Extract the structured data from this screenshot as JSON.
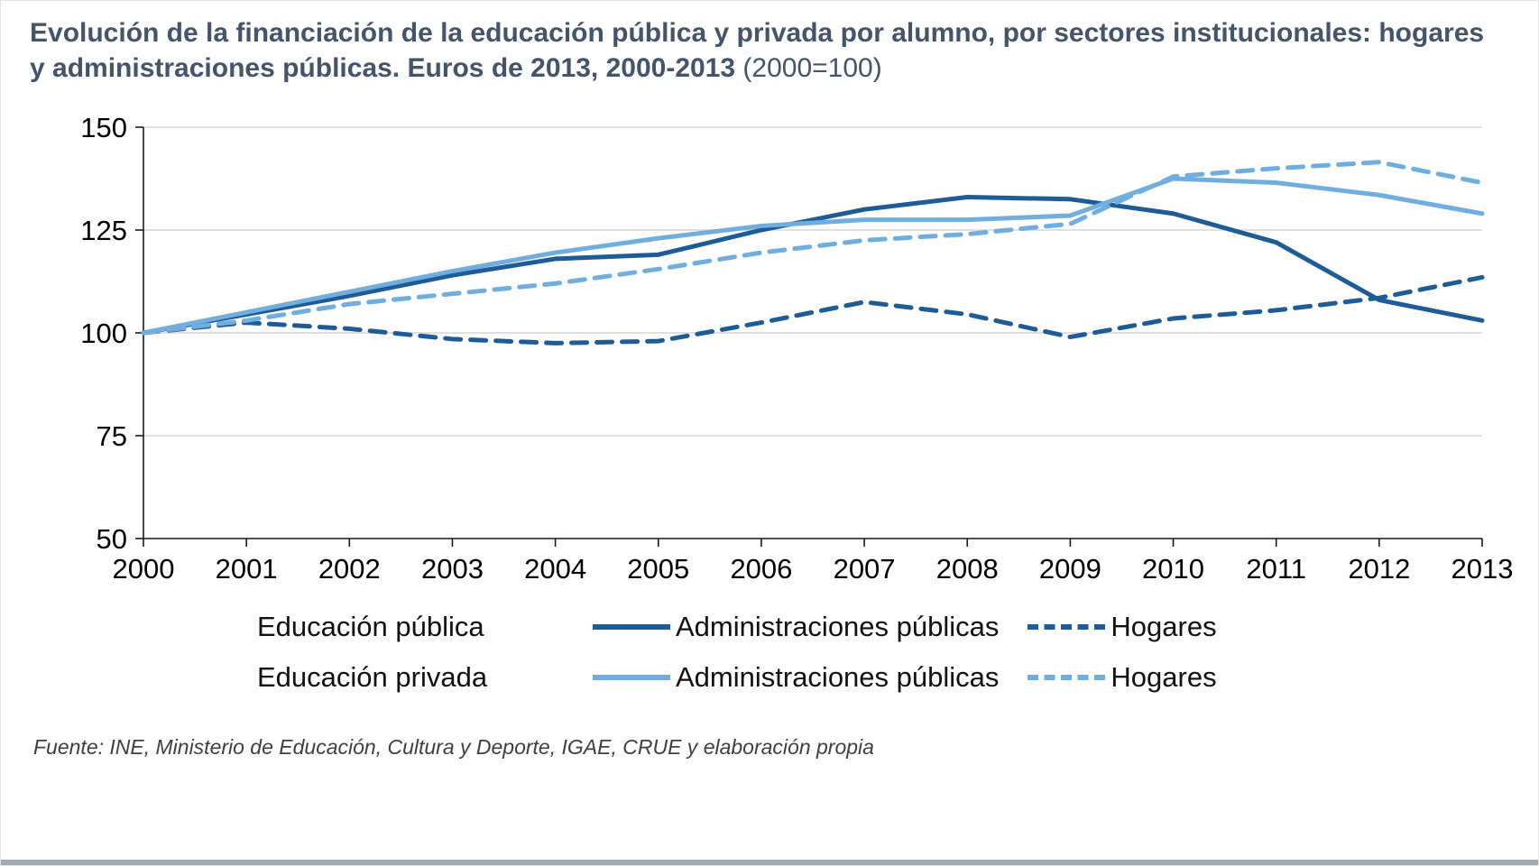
{
  "title": {
    "main": "Evolución de la financiación de la educación pública y privada por alumno, por sectores institucionales: hogares y administraciones públicas. Euros de 2013, 2000-2013",
    "suffix": "(2000=100)"
  },
  "source": "Fuente: INE, Ministerio de Educación, Cultura y Deporte, IGAE, CRUE  y elaboración propia",
  "colors": {
    "title_text": "#44546A",
    "dark_blue": "#1D5C96",
    "light_blue": "#6FAEDE",
    "grid": "#D6D6D6",
    "axis": "#1A1A1A",
    "tick_label": "#000000",
    "source_text": "#3F3F3F"
  },
  "legend": {
    "rows": [
      {
        "group": "Educación pública",
        "entries": [
          {
            "label": "Administraciones públicas",
            "series": 0
          },
          {
            "label": "Hogares",
            "series": 1
          }
        ]
      },
      {
        "group": "Educación privada",
        "entries": [
          {
            "label": "Administraciones públicas",
            "series": 2
          },
          {
            "label": "Hogares",
            "series": 3
          }
        ]
      }
    ]
  },
  "chart_data": {
    "type": "line",
    "title": "Evolución de la financiación de la educación pública y privada por alumno, por sectores institucionales: hogares y administraciones públicas. Euros de 2013, 2000-2013 (2000=100)",
    "x": [
      2000,
      2001,
      2002,
      2003,
      2004,
      2005,
      2006,
      2007,
      2008,
      2009,
      2010,
      2011,
      2012,
      2013
    ],
    "series": [
      {
        "name": "Educación pública - Administraciones públicas",
        "color": "#1D5C96",
        "dash": false,
        "values": [
          100,
          104.5,
          109,
          114,
          118,
          119,
          125,
          130,
          133,
          132.5,
          129,
          122,
          108,
          103
        ]
      },
      {
        "name": "Educación pública - Hogares",
        "color": "#1D5C96",
        "dash": true,
        "values": [
          100,
          102.5,
          101,
          98.5,
          97.5,
          98,
          102.5,
          107.5,
          104.5,
          99,
          103.5,
          105.5,
          108.5,
          113.5
        ]
      },
      {
        "name": "Educación privada - Administraciones públicas",
        "color": "#6FAEDE",
        "dash": false,
        "values": [
          100,
          105,
          110,
          115,
          119.5,
          123,
          126,
          127.5,
          127.5,
          128.5,
          137.5,
          136.5,
          133.5,
          129
        ]
      },
      {
        "name": "Educación privada - Hogares",
        "color": "#6FAEDE",
        "dash": true,
        "values": [
          100,
          103,
          107,
          109.5,
          112,
          115.5,
          119.5,
          122.5,
          124,
          126.5,
          138,
          140,
          141.5,
          136.5
        ]
      }
    ],
    "xlabel": "",
    "ylabel": "",
    "ylim": [
      50,
      150
    ],
    "yticks": [
      50,
      75,
      100,
      125,
      150
    ],
    "grid": true,
    "legend_position": "bottom"
  }
}
